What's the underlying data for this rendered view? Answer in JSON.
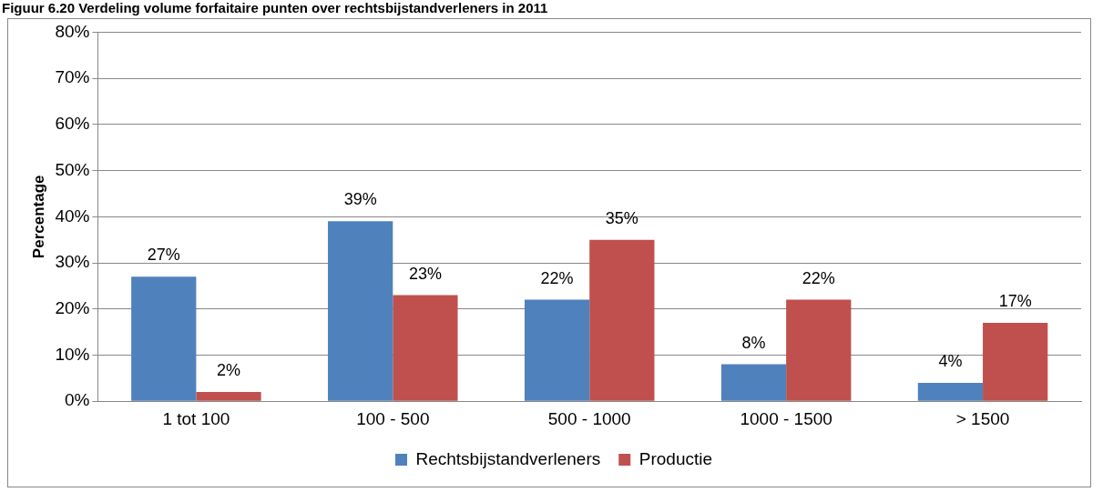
{
  "chart_data": {
    "type": "bar",
    "title": "Figuur 6.20 Verdeling volume forfaitaire punten over rechtsbijstandverleners in 2011",
    "ylabel": "Percentage",
    "categories": [
      "1 tot 100",
      "100 - 500",
      "500 - 1000",
      "1000 - 1500",
      "> 1500"
    ],
    "series": [
      {
        "name": "Rechtsbijstandverleners",
        "color": "#4f81bd",
        "values": [
          27,
          39,
          22,
          8,
          4
        ],
        "value_labels": [
          "27%",
          "39%",
          "22%",
          "8%",
          "4%"
        ]
      },
      {
        "name": "Productie",
        "color": "#c0504d",
        "values": [
          2,
          23,
          35,
          22,
          17
        ],
        "value_labels": [
          "2%",
          "23%",
          "35%",
          "22%",
          "17%"
        ]
      }
    ],
    "ylim": [
      0,
      80
    ],
    "yticks": [
      {
        "value": 0,
        "label": "0%"
      },
      {
        "value": 10,
        "label": "10%"
      },
      {
        "value": 20,
        "label": "20%"
      },
      {
        "value": 30,
        "label": "30%"
      },
      {
        "value": 40,
        "label": "40%"
      },
      {
        "value": 50,
        "label": "50%"
      },
      {
        "value": 60,
        "label": "60%"
      },
      {
        "value": 70,
        "label": "70%"
      },
      {
        "value": 80,
        "label": "80%"
      }
    ],
    "grid": "y",
    "legend": "bottom"
  }
}
